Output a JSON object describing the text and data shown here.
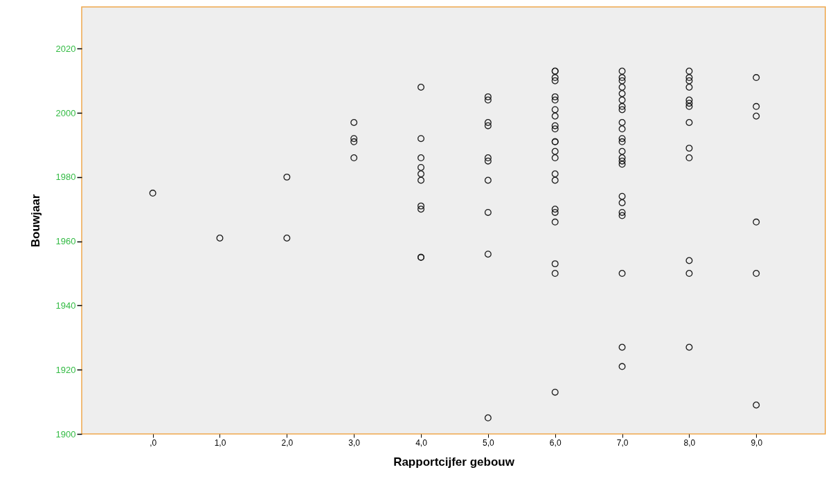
{
  "chart_data": {
    "type": "scatter",
    "xlabel": "Rapportcijfer gebouw",
    "ylabel": "Bouwjaar",
    "color": "#1a1a1a",
    "marker": "circle",
    "grid": false,
    "xlim": [
      -1.06,
      10.03
    ],
    "ylim": [
      1900,
      2033
    ],
    "xticks": [
      {
        "value": 0,
        "label": ",0"
      },
      {
        "value": 1,
        "label": "1,0"
      },
      {
        "value": 2,
        "label": "2,0"
      },
      {
        "value": 3,
        "label": "3,0"
      },
      {
        "value": 4,
        "label": "4,0"
      },
      {
        "value": 5,
        "label": "5,0"
      },
      {
        "value": 6,
        "label": "6,0"
      },
      {
        "value": 7,
        "label": "7,0"
      },
      {
        "value": 8,
        "label": "8,0"
      },
      {
        "value": 9,
        "label": "9,0"
      }
    ],
    "yticks": [
      1900,
      1920,
      1940,
      1960,
      1980,
      2000,
      2020
    ],
    "x": [
      0,
      1,
      2,
      2,
      3,
      3,
      3,
      3,
      4,
      4,
      4,
      4,
      4,
      4,
      4,
      4,
      4,
      4,
      5,
      5,
      5,
      5,
      5,
      5,
      5,
      5,
      5,
      5,
      6,
      6,
      6,
      6,
      6,
      6,
      6,
      6,
      6,
      6,
      6,
      6,
      6,
      6,
      6,
      6,
      6,
      6,
      6,
      6,
      6,
      6,
      7,
      7,
      7,
      7,
      7,
      7,
      7,
      7,
      7,
      7,
      7,
      7,
      7,
      7,
      7,
      7,
      7,
      7,
      7,
      7,
      7,
      7,
      7,
      8,
      8,
      8,
      8,
      8,
      8,
      8,
      8,
      8,
      8,
      8,
      8,
      8,
      9,
      9,
      9,
      9,
      9,
      9
    ],
    "values": [
      1975,
      1961,
      1980,
      1961,
      1997,
      1992,
      1991,
      1986,
      2008,
      1992,
      1986,
      1983,
      1981,
      1979,
      1971,
      1970,
      1955,
      1955,
      2005,
      2004,
      1997,
      1996,
      1986,
      1985,
      1979,
      1969,
      1956,
      1905,
      2013,
      2011,
      2010,
      2005,
      2004,
      2001,
      1999,
      1996,
      1995,
      1991,
      1988,
      1986,
      1981,
      1979,
      1970,
      1969,
      1966,
      1953,
      1950,
      1913,
      2013,
      1991,
      2013,
      2011,
      2010,
      2008,
      2006,
      2004,
      2002,
      2001,
      1997,
      1995,
      1992,
      1991,
      1988,
      1986,
      1985,
      1984,
      1974,
      1972,
      1969,
      1968,
      1950,
      1927,
      1921,
      2013,
      2011,
      2010,
      2008,
      2004,
      2003,
      2002,
      1997,
      1989,
      1986,
      1954,
      1950,
      1927,
      2011,
      2002,
      1999,
      1966,
      1950,
      1909
    ]
  }
}
